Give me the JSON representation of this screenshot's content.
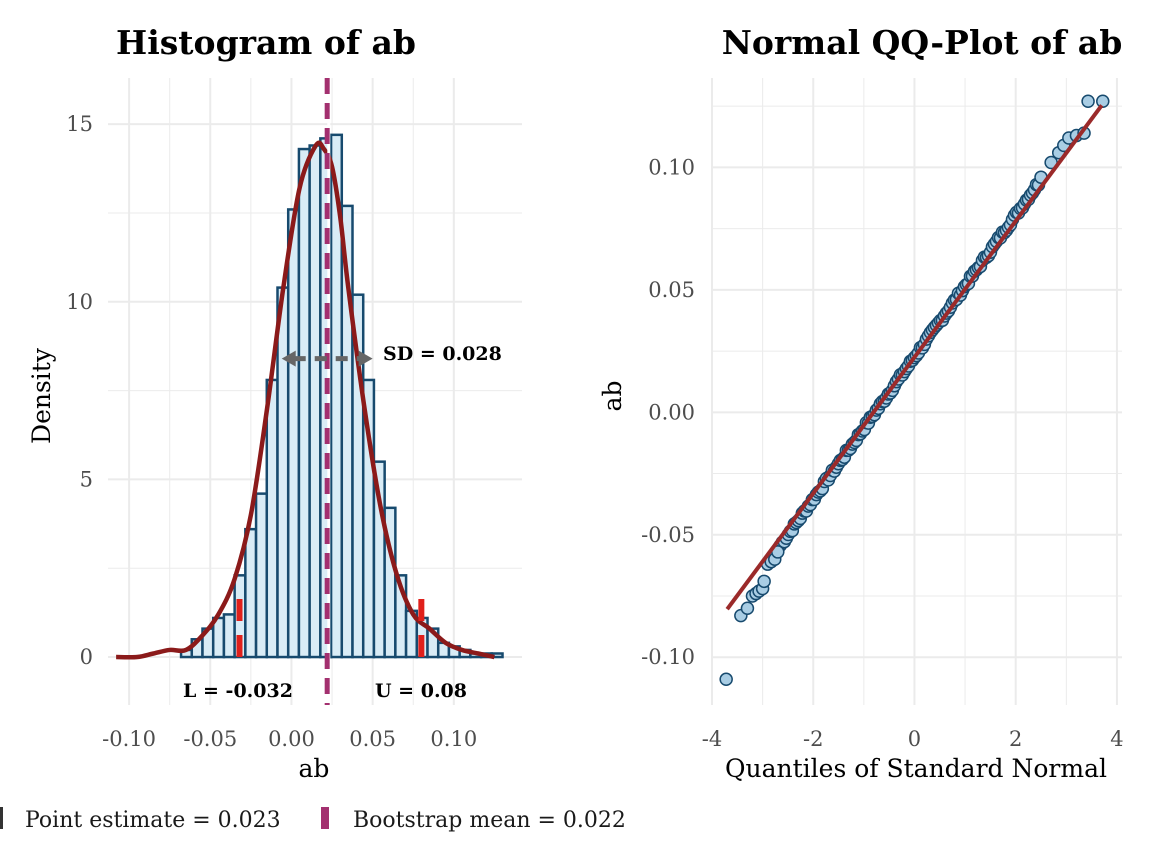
{
  "colors": {
    "bar_fill": "#d9ecf6",
    "bar_stroke": "#174a6e",
    "density_line": "#8b1a1a",
    "point_estimate": "#ffffff",
    "bootstrap_mean": "#a3306f",
    "ci_marker": "#e0201b",
    "sd_arrow": "#666666",
    "qq_point_fill": "#a9cde4",
    "qq_point_stroke": "#174a6e",
    "qq_line": "#9b2a2a",
    "grid": "#ebebeb"
  },
  "chart_data": [
    {
      "type": "bar",
      "subtype": "histogram",
      "title": "Histogram of ab",
      "xlabel": "ab",
      "ylabel": "Density",
      "xlim": [
        -0.113,
        0.142
      ],
      "ylim": [
        -1.35,
        16.3
      ],
      "xticks": [
        -0.1,
        -0.05,
        0.0,
        0.05,
        0.1
      ],
      "xtick_labels": [
        "-0.10",
        "-0.05",
        "0.00",
        "0.05",
        "0.10"
      ],
      "yticks": [
        0,
        5,
        10,
        15
      ],
      "ytick_labels": [
        "0",
        "5",
        "10",
        "15"
      ],
      "grid": true,
      "bin_width": 0.0066,
      "bins": [
        {
          "x0": -0.068,
          "x1": -0.0614,
          "density": 0.2
        },
        {
          "x0": -0.0614,
          "x1": -0.0548,
          "density": 0.5
        },
        {
          "x0": -0.0548,
          "x1": -0.0482,
          "density": 0.8
        },
        {
          "x0": -0.0482,
          "x1": -0.0416,
          "density": 1.1
        },
        {
          "x0": -0.0416,
          "x1": -0.035,
          "density": 1.2
        },
        {
          "x0": -0.035,
          "x1": -0.0284,
          "density": 2.3
        },
        {
          "x0": -0.0284,
          "x1": -0.0218,
          "density": 3.6
        },
        {
          "x0": -0.0218,
          "x1": -0.0152,
          "density": 4.6
        },
        {
          "x0": -0.0152,
          "x1": -0.0086,
          "density": 7.8
        },
        {
          "x0": -0.0086,
          "x1": -0.002,
          "density": 10.4
        },
        {
          "x0": -0.002,
          "x1": 0.0046,
          "density": 12.6
        },
        {
          "x0": 0.0046,
          "x1": 0.0112,
          "density": 14.3
        },
        {
          "x0": 0.0112,
          "x1": 0.0178,
          "density": 14.4
        },
        {
          "x0": 0.0178,
          "x1": 0.0244,
          "density": 14.6
        },
        {
          "x0": 0.0244,
          "x1": 0.031,
          "density": 14.7
        },
        {
          "x0": 0.031,
          "x1": 0.0376,
          "density": 12.7
        },
        {
          "x0": 0.0376,
          "x1": 0.0442,
          "density": 10.2
        },
        {
          "x0": 0.0442,
          "x1": 0.0508,
          "density": 7.8
        },
        {
          "x0": 0.0508,
          "x1": 0.0574,
          "density": 5.5
        },
        {
          "x0": 0.0574,
          "x1": 0.064,
          "density": 4.2
        },
        {
          "x0": 0.064,
          "x1": 0.0706,
          "density": 2.3
        },
        {
          "x0": 0.0706,
          "x1": 0.0772,
          "density": 1.3
        },
        {
          "x0": 0.0772,
          "x1": 0.0838,
          "density": 1.1
        },
        {
          "x0": 0.0838,
          "x1": 0.0904,
          "density": 0.8
        },
        {
          "x0": 0.0904,
          "x1": 0.097,
          "density": 0.4
        },
        {
          "x0": 0.097,
          "x1": 0.1036,
          "density": 0.3
        },
        {
          "x0": 0.1036,
          "x1": 0.1102,
          "density": 0.2
        },
        {
          "x0": 0.1102,
          "x1": 0.1168,
          "density": 0.1
        },
        {
          "x0": 0.1168,
          "x1": 0.1234,
          "density": 0.1
        },
        {
          "x0": 0.1234,
          "x1": 0.13,
          "density": 0.1
        }
      ],
      "density_curve": {
        "x": [
          -0.108,
          -0.095,
          -0.085,
          -0.075,
          -0.065,
          -0.055,
          -0.045,
          -0.035,
          -0.025,
          -0.015,
          -0.005,
          0.005,
          0.015,
          0.02,
          0.025,
          0.03,
          0.035,
          0.045,
          0.055,
          0.065,
          0.075,
          0.085,
          0.095,
          0.105,
          0.115,
          0.125
        ],
        "y": [
          0.0,
          0.0,
          0.1,
          0.2,
          0.2,
          0.6,
          1.2,
          2.2,
          4.0,
          7.0,
          10.4,
          13.2,
          14.4,
          14.3,
          13.8,
          12.4,
          10.4,
          7.0,
          4.2,
          2.3,
          1.2,
          0.8,
          0.4,
          0.2,
          0.1,
          0.0
        ]
      },
      "point_estimate": 0.023,
      "bootstrap_mean": 0.022,
      "ci_lower": -0.032,
      "ci_upper": 0.08,
      "sd": 0.028,
      "sd_arrow_y": 8.4,
      "annotations": {
        "sd_label": "SD = 0.028",
        "lower_label": "L = -0.032",
        "upper_label": "U = 0.08"
      }
    },
    {
      "type": "scatter",
      "subtype": "qq-plot",
      "title": "Normal QQ-Plot of ab",
      "xlabel": "Quantiles of Standard Normal",
      "ylabel": "ab",
      "xlim": [
        -4.0,
        4.1
      ],
      "ylim": [
        -0.1195,
        0.1365
      ],
      "xticks": [
        -4,
        -2,
        0,
        2,
        4
      ],
      "xtick_labels": [
        "-4",
        "-2",
        "0",
        "2",
        "4"
      ],
      "yticks": [
        -0.1,
        -0.05,
        0.0,
        0.05,
        0.1
      ],
      "ytick_labels": [
        "-0.10",
        "-0.05",
        "0.00",
        "0.05",
        "0.10"
      ],
      "grid": true,
      "reference_line": {
        "intercept": 0.0225,
        "slope": 0.0278,
        "x_from": -3.7,
        "x_to": 3.7
      },
      "tail_points": [
        {
          "x": -3.72,
          "y": -0.109
        },
        {
          "x": -3.43,
          "y": -0.083
        },
        {
          "x": -3.3,
          "y": -0.08
        },
        {
          "x": -3.2,
          "y": -0.075
        },
        {
          "x": -3.13,
          "y": -0.074
        },
        {
          "x": -3.07,
          "y": -0.073
        },
        {
          "x": -3.0,
          "y": -0.072
        },
        {
          "x": -2.97,
          "y": -0.069
        },
        {
          "x": -2.9,
          "y": -0.062
        },
        {
          "x": -2.83,
          "y": -0.061
        },
        {
          "x": -2.76,
          "y": -0.06
        },
        {
          "x": -2.7,
          "y": -0.057
        },
        {
          "x": 2.5,
          "y": 0.096
        },
        {
          "x": 2.7,
          "y": 0.102
        },
        {
          "x": 2.85,
          "y": 0.106
        },
        {
          "x": 2.95,
          "y": 0.109
        },
        {
          "x": 3.05,
          "y": 0.112
        },
        {
          "x": 3.2,
          "y": 0.113
        },
        {
          "x": 3.35,
          "y": 0.114
        },
        {
          "x": 3.43,
          "y": 0.127
        },
        {
          "x": 3.72,
          "y": 0.127
        }
      ],
      "body_points": {
        "x_from": -2.65,
        "x_to": 2.45,
        "count": 130,
        "slope": 0.029,
        "intercept": 0.0225
      }
    }
  ],
  "legend": {
    "position": "bottom-left",
    "items": [
      {
        "label": "Point estimate = 0.023",
        "color": "#ffffff"
      },
      {
        "label": "Bootstrap mean = 0.022",
        "color": "#a3306f"
      }
    ]
  }
}
